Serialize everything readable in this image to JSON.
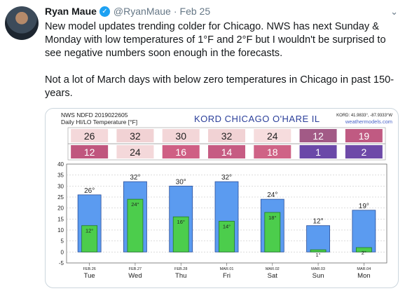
{
  "tweet": {
    "author_name": "Ryan Maue",
    "handle": "@RyanMaue",
    "separator": "·",
    "time": "Feb 25",
    "paragraph1": "New model updates trending colder for Chicago.  NWS has next Sunday & Monday with low temperatures of 1°F and 2°F but I wouldn't be surprised to see negative numbers soon enough in the forecasts.",
    "paragraph2": "Not a lot of March days with below zero temperatures in Chicago in past 150-years."
  },
  "icons": {
    "verified": "verified-badge-icon",
    "caret": "chevron-down-icon"
  },
  "chart_header": {
    "line1": "NWS NDFD 2019022605",
    "line2": "Daily HI/LO Temperature [°F]",
    "station": "KORD   CHICAGO O'HARE  IL",
    "coords": "KORD: 41.9833°, -87.9333°W",
    "site": "weathermodels.com"
  },
  "chart_data": {
    "type": "bar",
    "categories": [
      "Tue",
      "Wed",
      "Thu",
      "Fri",
      "Sat",
      "Sun",
      "Mon"
    ],
    "dates": [
      "FEB.26",
      "FEB.27",
      "FEB.28",
      "MAR.01",
      "MAR.02",
      "MAR.03",
      "MAR.04"
    ],
    "series": [
      {
        "values": [
          26,
          32,
          30,
          32,
          24,
          12,
          19
        ],
        "color": "#5b9bf0"
      },
      {
        "values": [
          12,
          24,
          16,
          14,
          18,
          1,
          2
        ],
        "color": "#4ccd4c"
      }
    ],
    "high_cell_colors": [
      "#f4d8da",
      "#f1d2d4",
      "#f3d6d8",
      "#f1d2d4",
      "#f6dcdd",
      "#a25a86",
      "#c05a82"
    ],
    "low_cell_colors": [
      "#c0567e",
      "#f4d8da",
      "#cf5f84",
      "#c65c83",
      "#cf6386",
      "#6a48a8",
      "#6e4aa8"
    ],
    "ylim": [
      -5,
      40
    ],
    "yticks": [
      -5,
      0,
      5,
      10,
      15,
      20,
      25,
      30,
      35,
      40
    ],
    "degree_symbol": "°",
    "grid": true
  }
}
